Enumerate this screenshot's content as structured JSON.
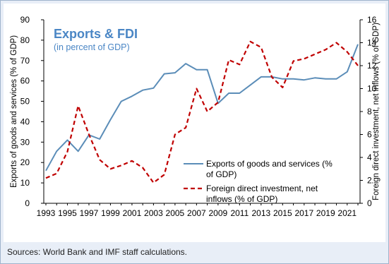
{
  "chart_data": {
    "type": "line",
    "title": "Exports & FDI",
    "subtitle": "(in percent of GDP)",
    "x": [
      1993,
      1994,
      1995,
      1996,
      1997,
      1998,
      1999,
      2000,
      2001,
      2002,
      2003,
      2004,
      2005,
      2006,
      2007,
      2008,
      2009,
      2010,
      2011,
      2012,
      2013,
      2014,
      2015,
      2016,
      2017,
      2018,
      2019,
      2020,
      2021,
      2022
    ],
    "x_tick_labels": [
      "1993",
      "1995",
      "1997",
      "1999",
      "2001",
      "2003",
      "2005",
      "2007",
      "2009",
      "2011",
      "2013",
      "2015",
      "2017",
      "2019",
      "2021"
    ],
    "series": [
      {
        "name": "Exports of goods and services (% of GDP)",
        "axis": "left",
        "color": "#5b8db8",
        "style": "solid",
        "values": [
          16,
          25.5,
          31,
          25.5,
          33.5,
          31.5,
          41,
          50,
          52.5,
          55.5,
          56.5,
          63.5,
          64,
          68.5,
          65.5,
          65.5,
          49,
          54,
          54,
          58,
          62,
          62,
          61,
          61,
          60.5,
          61.5,
          61,
          61,
          64.5,
          78
        ]
      },
      {
        "name": "Foreign direct investment, net inflows (% of GDP)",
        "axis": "right",
        "color": "#c00000",
        "style": "dashed",
        "values": [
          2.2,
          2.6,
          4.5,
          8.5,
          6,
          3.8,
          3,
          3.3,
          3.7,
          3.1,
          1.8,
          2.5,
          6,
          6.6,
          10,
          8,
          8.8,
          12.5,
          12.1,
          14.1,
          13.6,
          11,
          10.1,
          12.4,
          12.6,
          13,
          13.4,
          14,
          13.2,
          12
        ]
      }
    ],
    "y_left": {
      "label": "Exports of goods and services (% of GDP)",
      "ylim": [
        0,
        90
      ],
      "ticks": [
        "0",
        "10",
        "20",
        "30",
        "40",
        "50",
        "60",
        "70",
        "80",
        "90"
      ]
    },
    "y_right": {
      "label": "Foreign direct investment, net inflows (% of GDP)",
      "ylim": [
        0,
        16
      ],
      "ticks": [
        "0",
        "2",
        "4",
        "6",
        "8",
        "10",
        "12",
        "14",
        "16"
      ]
    },
    "legend": {
      "placement": "bottom-right",
      "entries": [
        {
          "lines": [
            "Exports of goods and services (%",
            "of GDP)"
          ]
        },
        {
          "lines": [
            "Foreign direct investment, net",
            "inflows (% of GDP)"
          ]
        }
      ]
    },
    "grid": false,
    "colors": {
      "title": "#4a86c5",
      "axis": "#000000"
    }
  },
  "source": "Sources: World Bank and IMF staff calculations."
}
